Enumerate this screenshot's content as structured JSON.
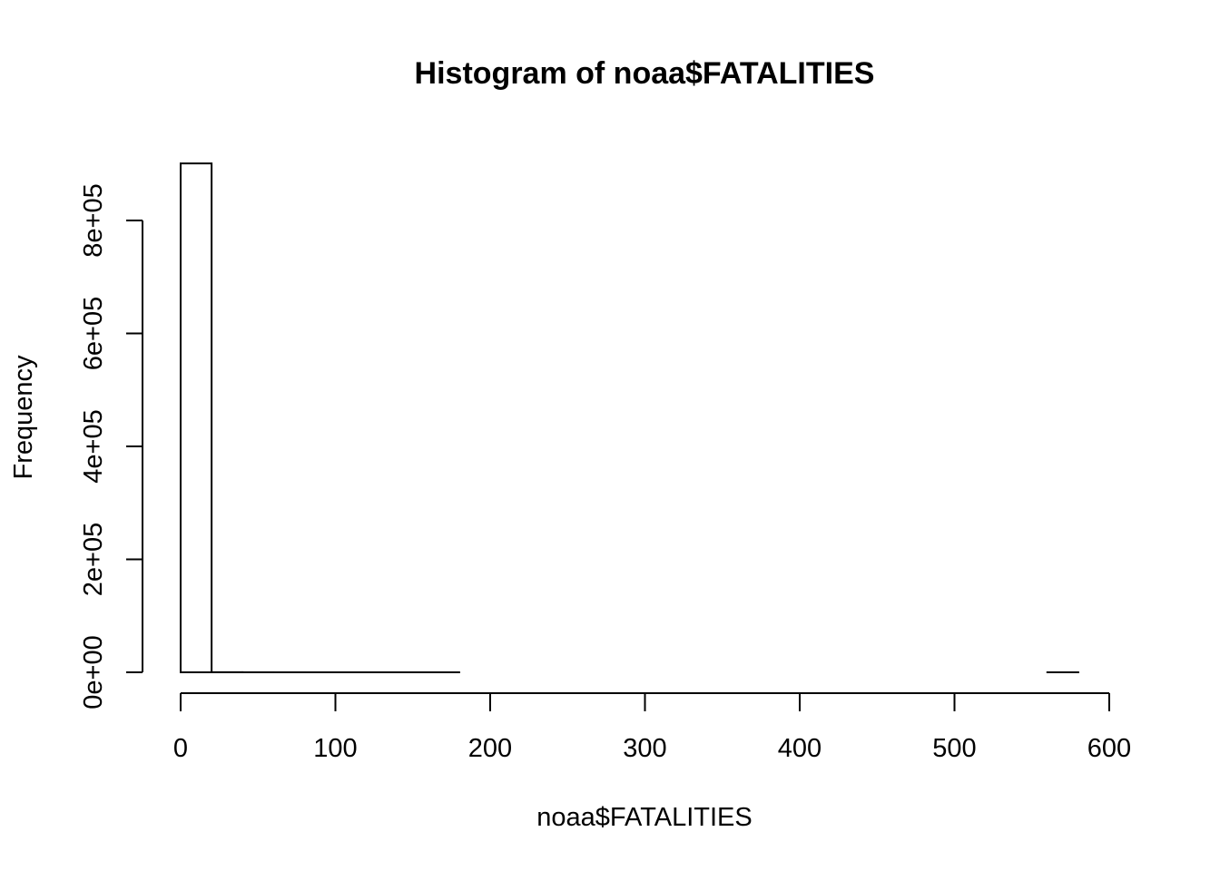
{
  "chart_data": {
    "type": "bar",
    "title": "Histogram of noaa$FATALITIES",
    "xlabel": "noaa$FATALITIES",
    "ylabel": "Frequency",
    "xlim": [
      0,
      600
    ],
    "ylim": [
      0,
      900000
    ],
    "x_ticks": [
      0,
      100,
      200,
      300,
      400,
      500,
      600
    ],
    "x_tick_labels": [
      "0",
      "100",
      "200",
      "300",
      "400",
      "500",
      "600"
    ],
    "y_ticks": [
      0,
      200000,
      400000,
      600000,
      800000
    ],
    "y_tick_labels": [
      "0e+00",
      "2e+05",
      "4e+05",
      "6e+05",
      "8e+05"
    ],
    "bins": [
      {
        "start": 0,
        "end": 20,
        "count": 901000
      },
      {
        "start": 20,
        "end": 40,
        "count": 200
      },
      {
        "start": 40,
        "end": 60,
        "count": 40
      },
      {
        "start": 60,
        "end": 80,
        "count": 10
      },
      {
        "start": 80,
        "end": 100,
        "count": 5
      },
      {
        "start": 100,
        "end": 120,
        "count": 3
      },
      {
        "start": 120,
        "end": 140,
        "count": 1
      },
      {
        "start": 140,
        "end": 160,
        "count": 1
      },
      {
        "start": 160,
        "end": 180,
        "count": 1
      },
      {
        "start": 180,
        "end": 200,
        "count": 0
      },
      {
        "start": 200,
        "end": 220,
        "count": 0
      },
      {
        "start": 220,
        "end": 240,
        "count": 0
      },
      {
        "start": 240,
        "end": 260,
        "count": 0
      },
      {
        "start": 260,
        "end": 280,
        "count": 0
      },
      {
        "start": 280,
        "end": 300,
        "count": 0
      },
      {
        "start": 300,
        "end": 320,
        "count": 0
      },
      {
        "start": 320,
        "end": 340,
        "count": 0
      },
      {
        "start": 340,
        "end": 360,
        "count": 0
      },
      {
        "start": 360,
        "end": 380,
        "count": 0
      },
      {
        "start": 380,
        "end": 400,
        "count": 0
      },
      {
        "start": 400,
        "end": 420,
        "count": 0
      },
      {
        "start": 420,
        "end": 440,
        "count": 0
      },
      {
        "start": 440,
        "end": 460,
        "count": 0
      },
      {
        "start": 460,
        "end": 480,
        "count": 0
      },
      {
        "start": 480,
        "end": 500,
        "count": 0
      },
      {
        "start": 500,
        "end": 520,
        "count": 0
      },
      {
        "start": 520,
        "end": 540,
        "count": 0
      },
      {
        "start": 540,
        "end": 560,
        "count": 0
      },
      {
        "start": 560,
        "end": 580,
        "count": 1
      },
      {
        "start": 580,
        "end": 600,
        "count": 0
      }
    ],
    "bar_fill": "#ffffff",
    "bar_stroke": "#000000",
    "grid": false,
    "legend": "none"
  }
}
